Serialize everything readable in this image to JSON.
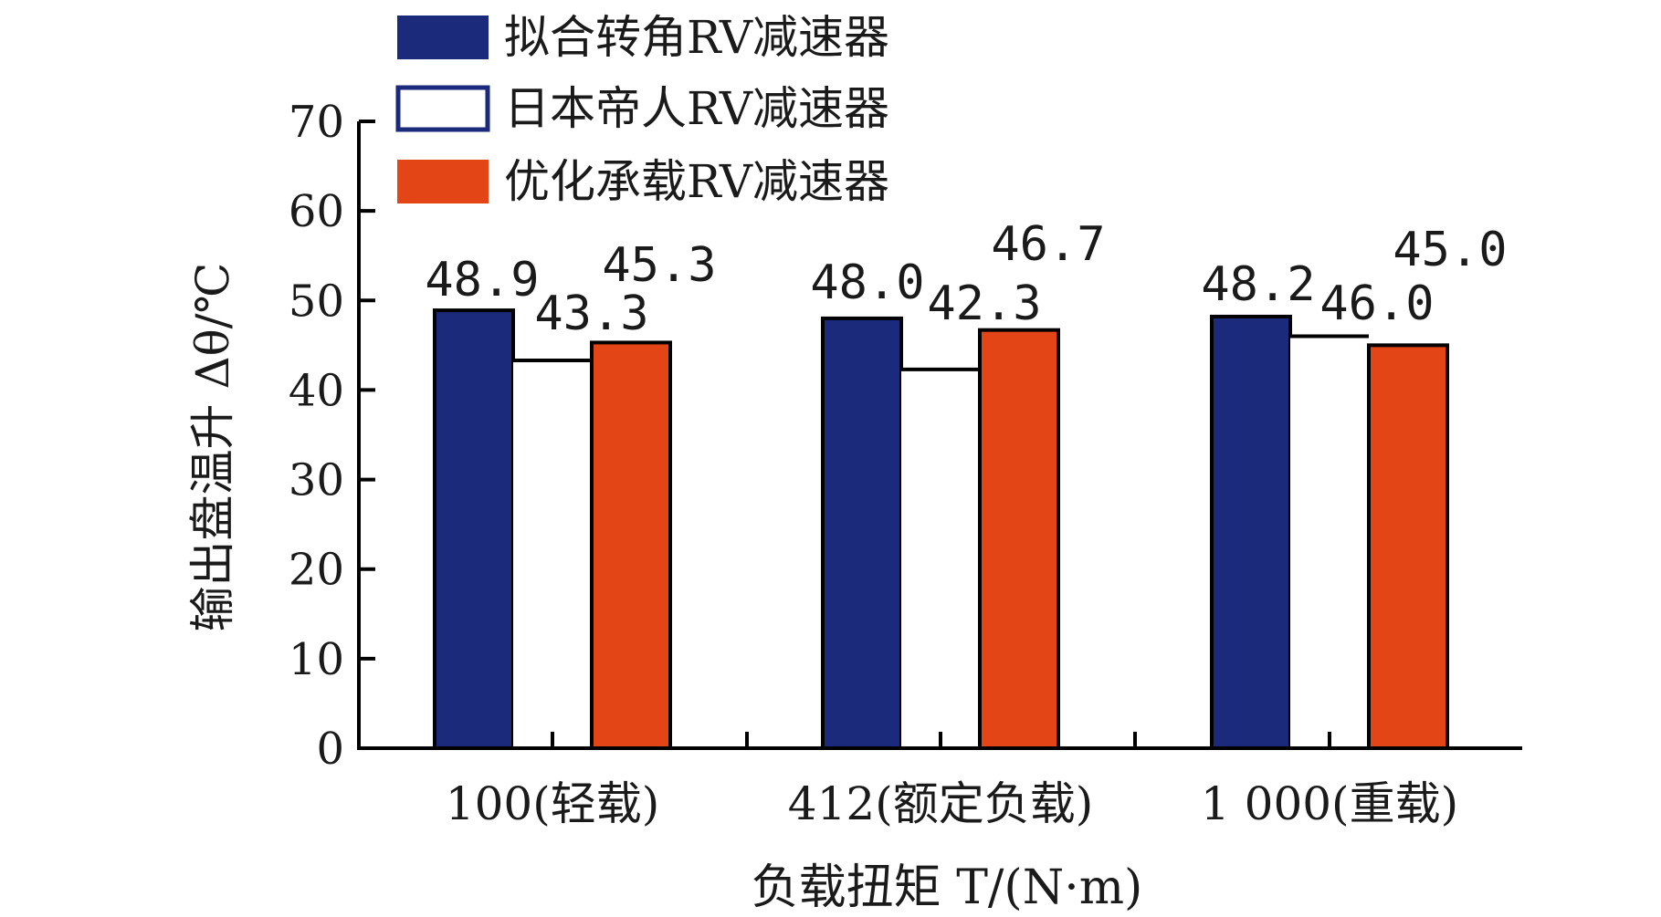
{
  "chart_data": {
    "type": "bar",
    "title": "",
    "xlabel": "负载扭矩 T/(N·m)",
    "ylabel": "输出盘温升 Δθ/℃",
    "categories": [
      "100(轻载)",
      "412(额定负载)",
      "1 000(重载)"
    ],
    "ylim": [
      0,
      70
    ],
    "yticks": [
      0,
      10,
      20,
      30,
      40,
      50,
      60,
      70
    ],
    "grid": false,
    "legend_position": "top",
    "series": [
      {
        "name": "拟合转角RV减速器",
        "values": [
          48.9,
          48.0,
          48.2
        ],
        "labels": [
          "48.9",
          "48.0",
          "48.2"
        ],
        "color": "#1B2A7A",
        "fill": true
      },
      {
        "name": "日本帝人RV减速器",
        "values": [
          43.3,
          42.3,
          46.0
        ],
        "labels": [
          "43.3",
          "42.3",
          "46.0"
        ],
        "color": "#1B2A7A",
        "fill": false
      },
      {
        "name": "优化承载RV减速器",
        "values": [
          45.3,
          46.7,
          45.0
        ],
        "labels": [
          "45.3",
          "46.7",
          "45.0"
        ],
        "color": "#E34516",
        "fill": true
      }
    ]
  }
}
